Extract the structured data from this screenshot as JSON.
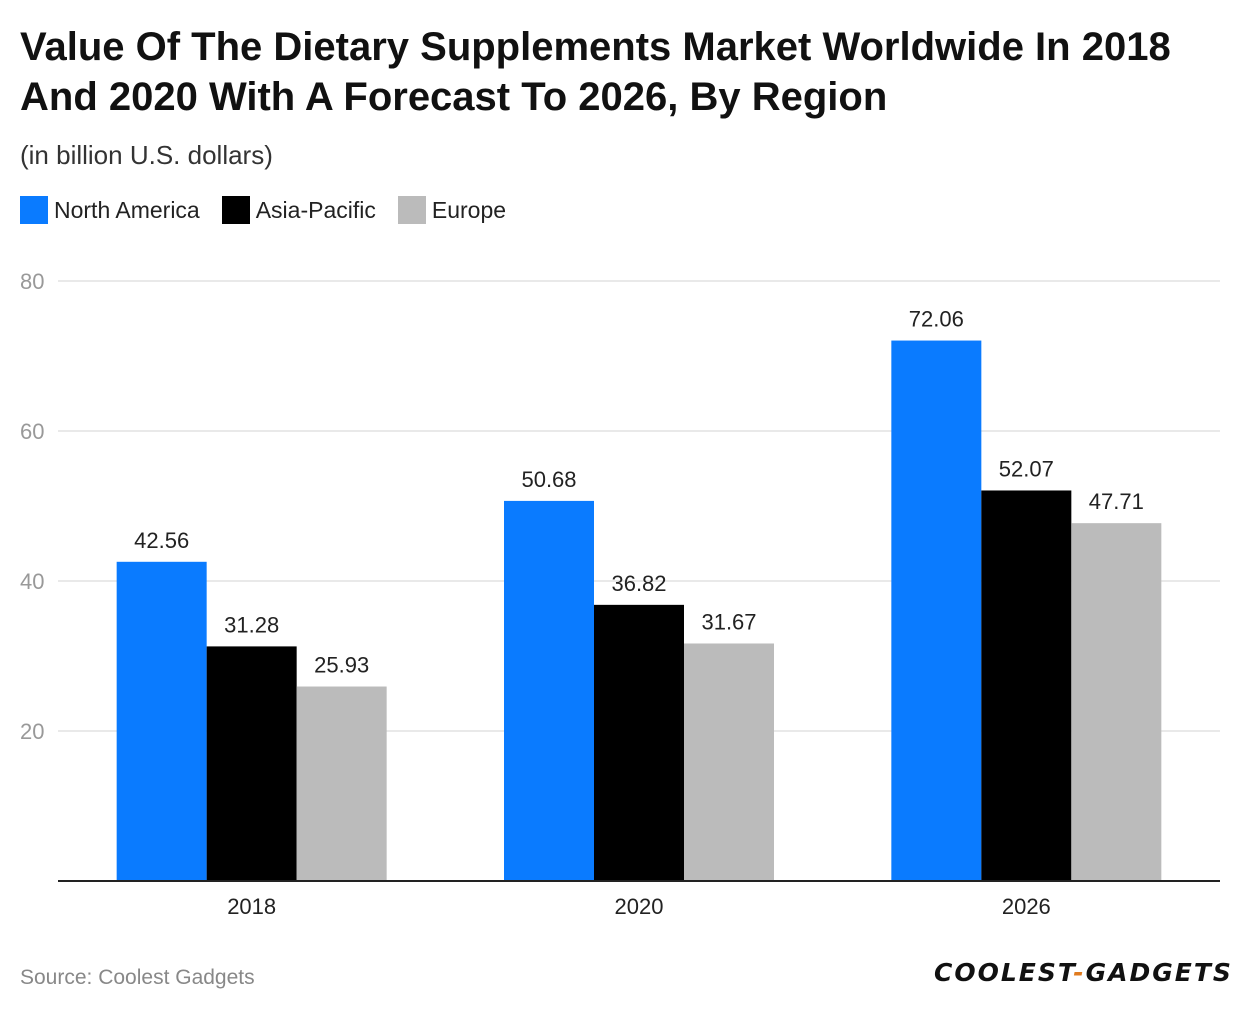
{
  "chart_data": {
    "type": "bar",
    "title": "Value Of The Dietary Supplements Market Worldwide In 2018 And 2020 With A Forecast To 2026, By Region",
    "subtitle": "(in billion U.S. dollars)",
    "categories": [
      "2018",
      "2020",
      "2026"
    ],
    "series": [
      {
        "name": "North America",
        "color": "#0a7bff",
        "values": [
          42.56,
          50.68,
          72.06
        ],
        "labels": [
          "42.56",
          "50.68",
          "72.06"
        ]
      },
      {
        "name": "Asia-Pacific",
        "color": "#000000",
        "values": [
          31.28,
          36.82,
          52.07
        ],
        "labels": [
          "31.28",
          "36.82",
          "52.07"
        ]
      },
      {
        "name": "Europe",
        "color": "#bbbbbb",
        "values": [
          25.93,
          31.67,
          47.71
        ],
        "labels": [
          "25.93",
          "31.67",
          "47.71"
        ]
      }
    ],
    "ylim": [
      0,
      80
    ],
    "yticks": [
      "20",
      "40",
      "60",
      "80"
    ],
    "xlabel": "",
    "ylabel": "",
    "grid": true,
    "legend_position": "top-left"
  },
  "footer": {
    "source": "Source: Coolest Gadgets",
    "logo_left": "COOLEST",
    "logo_dash": "-",
    "logo_right": "GADGETS"
  }
}
